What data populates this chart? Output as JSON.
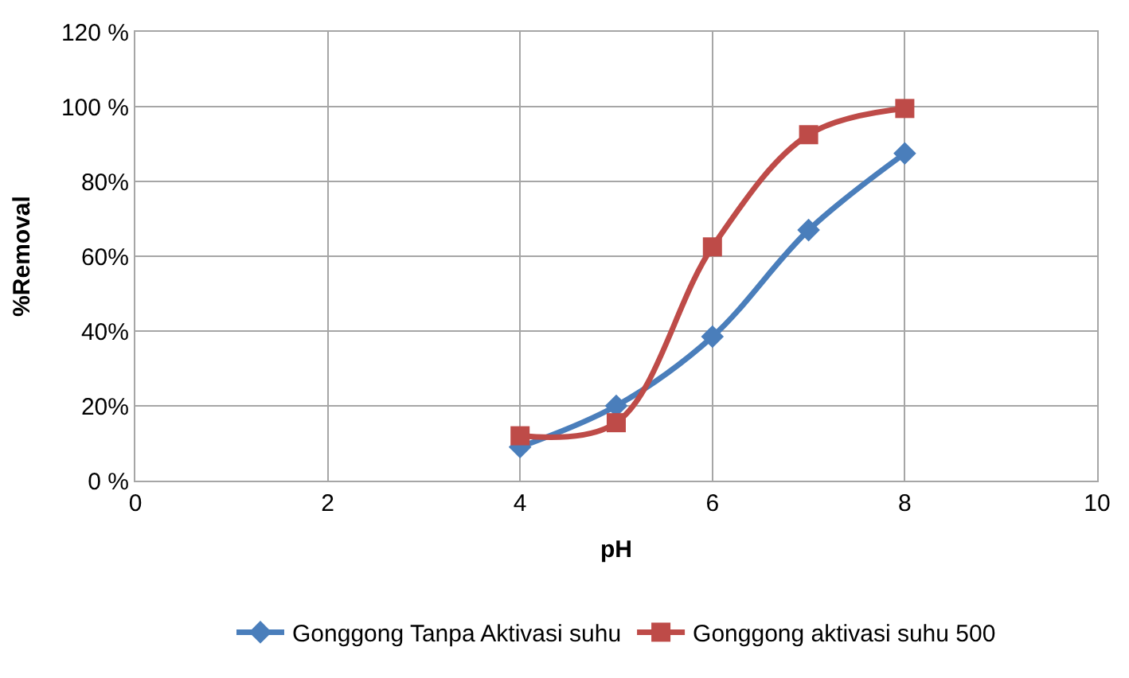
{
  "chart_data": {
    "type": "line",
    "xlabel": "pH",
    "ylabel": "%Removal",
    "x": [
      4,
      5,
      6,
      7,
      8
    ],
    "series": [
      {
        "name": "Gonggong Tanpa Aktivasi suhu",
        "color": "#4a7ebb",
        "values": [
          9,
          20,
          38.5,
          67,
          87.5
        ],
        "marker": "diamond"
      },
      {
        "name": "Gonggong aktivasi suhu 500",
        "color": "#be4b48",
        "values": [
          12,
          15.5,
          62.5,
          92.5,
          99.5
        ],
        "marker": "square"
      }
    ],
    "xlim": [
      0,
      10
    ],
    "xticks": [
      0,
      2,
      4,
      6,
      8,
      10
    ],
    "ylim": [
      0,
      120
    ],
    "yticks": [
      {
        "value": 0,
        "label": "0 %"
      },
      {
        "value": 20,
        "label": "20%"
      },
      {
        "value": 40,
        "label": "40%"
      },
      {
        "value": 60,
        "label": "60%"
      },
      {
        "value": 80,
        "label": "80%"
      },
      {
        "value": 100,
        "label": "100 %"
      },
      {
        "value": 120,
        "label": "120 %"
      }
    ],
    "grid": true,
    "legend": "bottom",
    "line_style": "solid"
  }
}
